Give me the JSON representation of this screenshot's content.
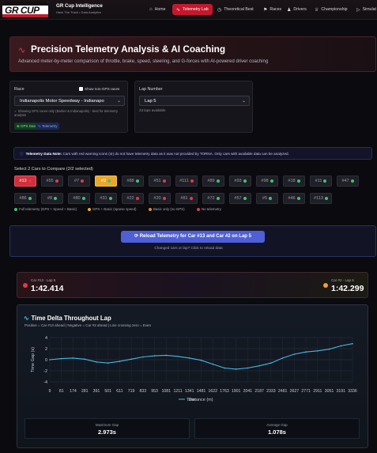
{
  "brand": {
    "logo_text": "GR CUP",
    "title": "GR Cup Intelligence",
    "subtitle": "Hack The Track • Data Analytics"
  },
  "nav": [
    {
      "icon": "home-icon",
      "glyph": "⌂",
      "label": "Home"
    },
    {
      "icon": "pulse-icon",
      "glyph": "∿",
      "label": "Telemetry Lab"
    },
    {
      "icon": "clock-icon",
      "glyph": "◷",
      "label": "Theoretical Best"
    },
    {
      "icon": "flag-icon",
      "glyph": "⚑",
      "label": "Races"
    },
    {
      "icon": "users-icon",
      "glyph": "♟",
      "label": "Drivers"
    },
    {
      "icon": "trophy-icon",
      "glyph": "♕",
      "label": "Championship"
    },
    {
      "icon": "play-icon",
      "glyph": "▷",
      "label": "Simulat"
    }
  ],
  "hero": {
    "title": "Precision Telemetry Analysis & AI Coaching",
    "subtitle": "Advanced meter-by-meter comparison of throttle, brake, speed, steering, and G-forces with AI-powered driver coaching"
  },
  "race": {
    "label": "Race",
    "show_non_gps": "Show non-GPS races",
    "selected": "Indianapolis Motor Speedway - Indianapo",
    "hint": "Showing GPS races only (Barber & Indianapolis) - best for telemetry analysis",
    "tags": [
      "GPS Data",
      "Telemetry"
    ]
  },
  "lap": {
    "label": "Lap Number",
    "selected": "Lap 5",
    "available": "23 laps available"
  },
  "note": {
    "title": "Telemetry Data Note:",
    "text": "Cars with red warning icons (⊘) do not have telemetry data as it was not provided by TORNA. Only cars with available data can be analyzed."
  },
  "cars": {
    "heading": "Select 2 Cars to Compare (2/2 selected)",
    "row1": [
      {
        "label": "#13",
        "status": "red",
        "selected": 1
      },
      {
        "label": "#55",
        "status": "red"
      },
      {
        "label": "#7",
        "status": "red"
      },
      {
        "label": "#2",
        "status": "green",
        "selected": 2
      },
      {
        "label": "#88",
        "status": "green"
      },
      {
        "label": "#51",
        "status": "red"
      },
      {
        "label": "#111",
        "status": "red"
      },
      {
        "label": "#89",
        "status": "green"
      },
      {
        "label": "#93",
        "status": "green"
      },
      {
        "label": "#98",
        "status": "green"
      },
      {
        "label": "#18",
        "status": "green"
      },
      {
        "label": "#11",
        "status": "green"
      },
      {
        "label": "#47",
        "status": "green"
      }
    ],
    "row2": [
      {
        "label": "#86",
        "status": "green"
      },
      {
        "label": "#8",
        "status": "green"
      },
      {
        "label": "#80",
        "status": "green"
      },
      {
        "label": "#31",
        "status": "green"
      },
      {
        "label": "#22",
        "status": "red"
      },
      {
        "label": "#20",
        "status": "red"
      },
      {
        "label": "#81",
        "status": "red"
      },
      {
        "label": "#72",
        "status": "green"
      },
      {
        "label": "#57",
        "status": "green"
      },
      {
        "label": "#5",
        "status": "green"
      },
      {
        "label": "#46",
        "status": "green"
      },
      {
        "label": "#113",
        "status": "green"
      }
    ],
    "legend": [
      {
        "color": "#3ec46d",
        "label": "Full telemetry (GPS + Speed + Basic)"
      },
      {
        "color": "#e9b02b",
        "label": "GPS + Basic (sparse speed)"
      },
      {
        "color": "#e68a2b",
        "label": "Basic only (no GPS)"
      },
      {
        "color": "#e03b4a",
        "label": "No telemetry"
      }
    ]
  },
  "reload": {
    "button": "Reload Telemetry for Car #13 and Car #2 on Lap 5",
    "hint": "Changed cars or lap? Click to reload data"
  },
  "laps": {
    "car1": {
      "label": "Car #13 - Lap 5",
      "time": "1:42.414",
      "color": "#e03b4a"
    },
    "car2": {
      "label": "Car #2 - Lap 5",
      "time": "1:42.299",
      "color": "#f0a030"
    }
  },
  "chart": {
    "title": "Time Delta Throughout Lap",
    "subtitle": "Positive = Car #13 ahead | Negative = Car #2 ahead | Line crossing zero = Even",
    "ylabel": "Time Gap (s)",
    "xlabel": "Distance (m)",
    "legend_label": "Time"
  },
  "stats": [
    {
      "label": "Maximum Gap",
      "value": "2.973s"
    },
    {
      "label": "Average Gap",
      "value": "1.078s"
    }
  ],
  "chart_data": {
    "type": "line",
    "title": "Time Delta Throughout Lap",
    "xlabel": "Distance (m)",
    "ylabel": "Time Gap (s)",
    "ylim": [
      -4,
      4
    ],
    "y_ticks": [
      -4,
      -2,
      0,
      2,
      4
    ],
    "x_tick_labels": [
      "9",
      "81",
      "174",
      "281",
      "391",
      "501",
      "611",
      "719",
      "833",
      "953",
      "1081",
      "1211",
      "1341",
      "1481",
      "1622",
      "1763",
      "1901",
      "2041",
      "2187",
      "2333",
      "2481",
      "2627",
      "2771",
      "2911",
      "3051",
      "3191",
      "3336"
    ],
    "grid": true,
    "series": [
      {
        "name": "Time",
        "color": "#49b8e2",
        "x": [
          9,
          81,
          174,
          281,
          391,
          501,
          611,
          719,
          833,
          953,
          1081,
          1211,
          1341,
          1481,
          1622,
          1763,
          1901,
          2041,
          2187,
          2333,
          2481,
          2627,
          2771,
          2911,
          3051,
          3191,
          3336
        ],
        "values": [
          0.0,
          0.2,
          0.3,
          0.1,
          -0.4,
          -0.6,
          -0.3,
          0.1,
          0.5,
          0.7,
          0.8,
          0.6,
          0.3,
          -0.1,
          -0.8,
          -1.5,
          -1.7,
          -1.5,
          -1.1,
          -0.6,
          0.3,
          1.0,
          1.4,
          1.6,
          1.9,
          2.5,
          2.9
        ]
      }
    ]
  }
}
